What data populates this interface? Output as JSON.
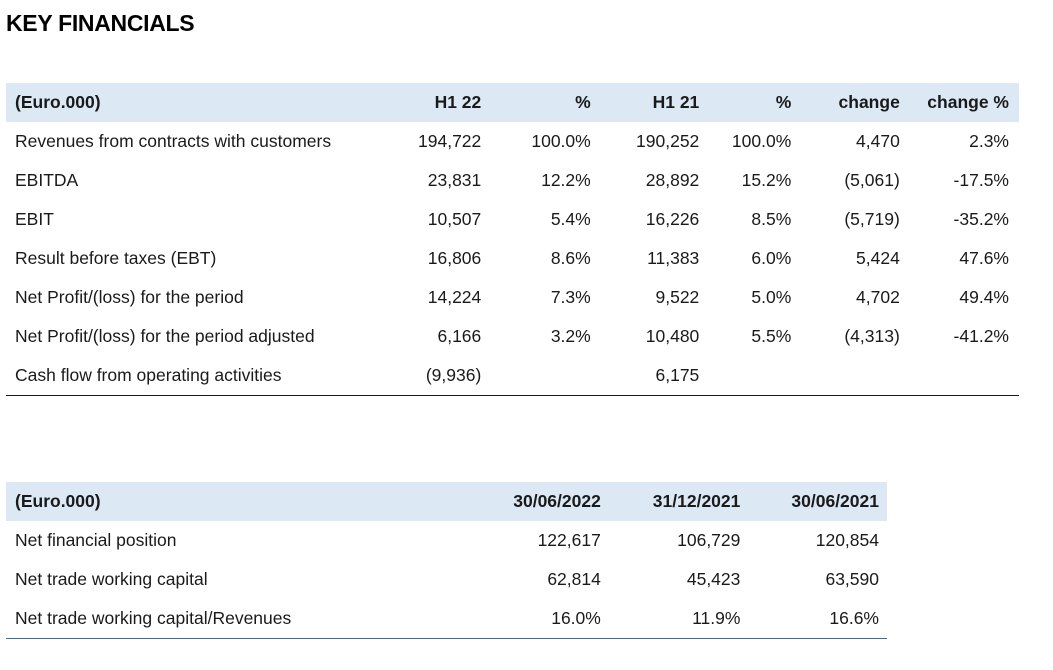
{
  "title": "KEY FINANCIALS",
  "table1": {
    "headers": [
      "(Euro.000)",
      "H1 22",
      "%",
      "H1 21",
      "%",
      "change",
      "change %"
    ],
    "rows": [
      [
        "Revenues from contracts with customers",
        "194,722",
        "100.0%",
        "190,252",
        "100.0%",
        "4,470",
        "2.3%"
      ],
      [
        "EBITDA",
        "23,831",
        "12.2%",
        "28,892",
        "15.2%",
        "(5,061)",
        "-17.5%"
      ],
      [
        "EBIT",
        "10,507",
        "5.4%",
        "16,226",
        "8.5%",
        "(5,719)",
        "-35.2%"
      ],
      [
        "Result before taxes (EBT)",
        "16,806",
        "8.6%",
        "11,383",
        "6.0%",
        "5,424",
        "47.6%"
      ],
      [
        "Net Profit/(loss) for the period",
        "14,224",
        "7.3%",
        "9,522",
        "5.0%",
        "4,702",
        "49.4%"
      ],
      [
        "Net Profit/(loss) for the period adjusted",
        "6,166",
        "3.2%",
        "10,480",
        "5.5%",
        "(4,313)",
        "-41.2%"
      ],
      [
        "Cash flow from operating activities",
        "(9,936)",
        "",
        "6,175",
        "",
        "",
        ""
      ]
    ]
  },
  "table2": {
    "headers": [
      "(Euro.000)",
      "30/06/2022",
      "31/12/2021",
      "30/06/2021"
    ],
    "rows": [
      [
        "Net financial position",
        "122,617",
        "106,729",
        "120,854"
      ],
      [
        "Net trade working capital",
        "62,814",
        "45,423",
        "63,590"
      ],
      [
        "Net trade working capital/Revenues",
        "16.0%",
        "11.9%",
        "16.6%"
      ]
    ]
  },
  "colors": {
    "header_background": "#dce9f5",
    "bottom_rule_table2": "#3b6e96"
  }
}
